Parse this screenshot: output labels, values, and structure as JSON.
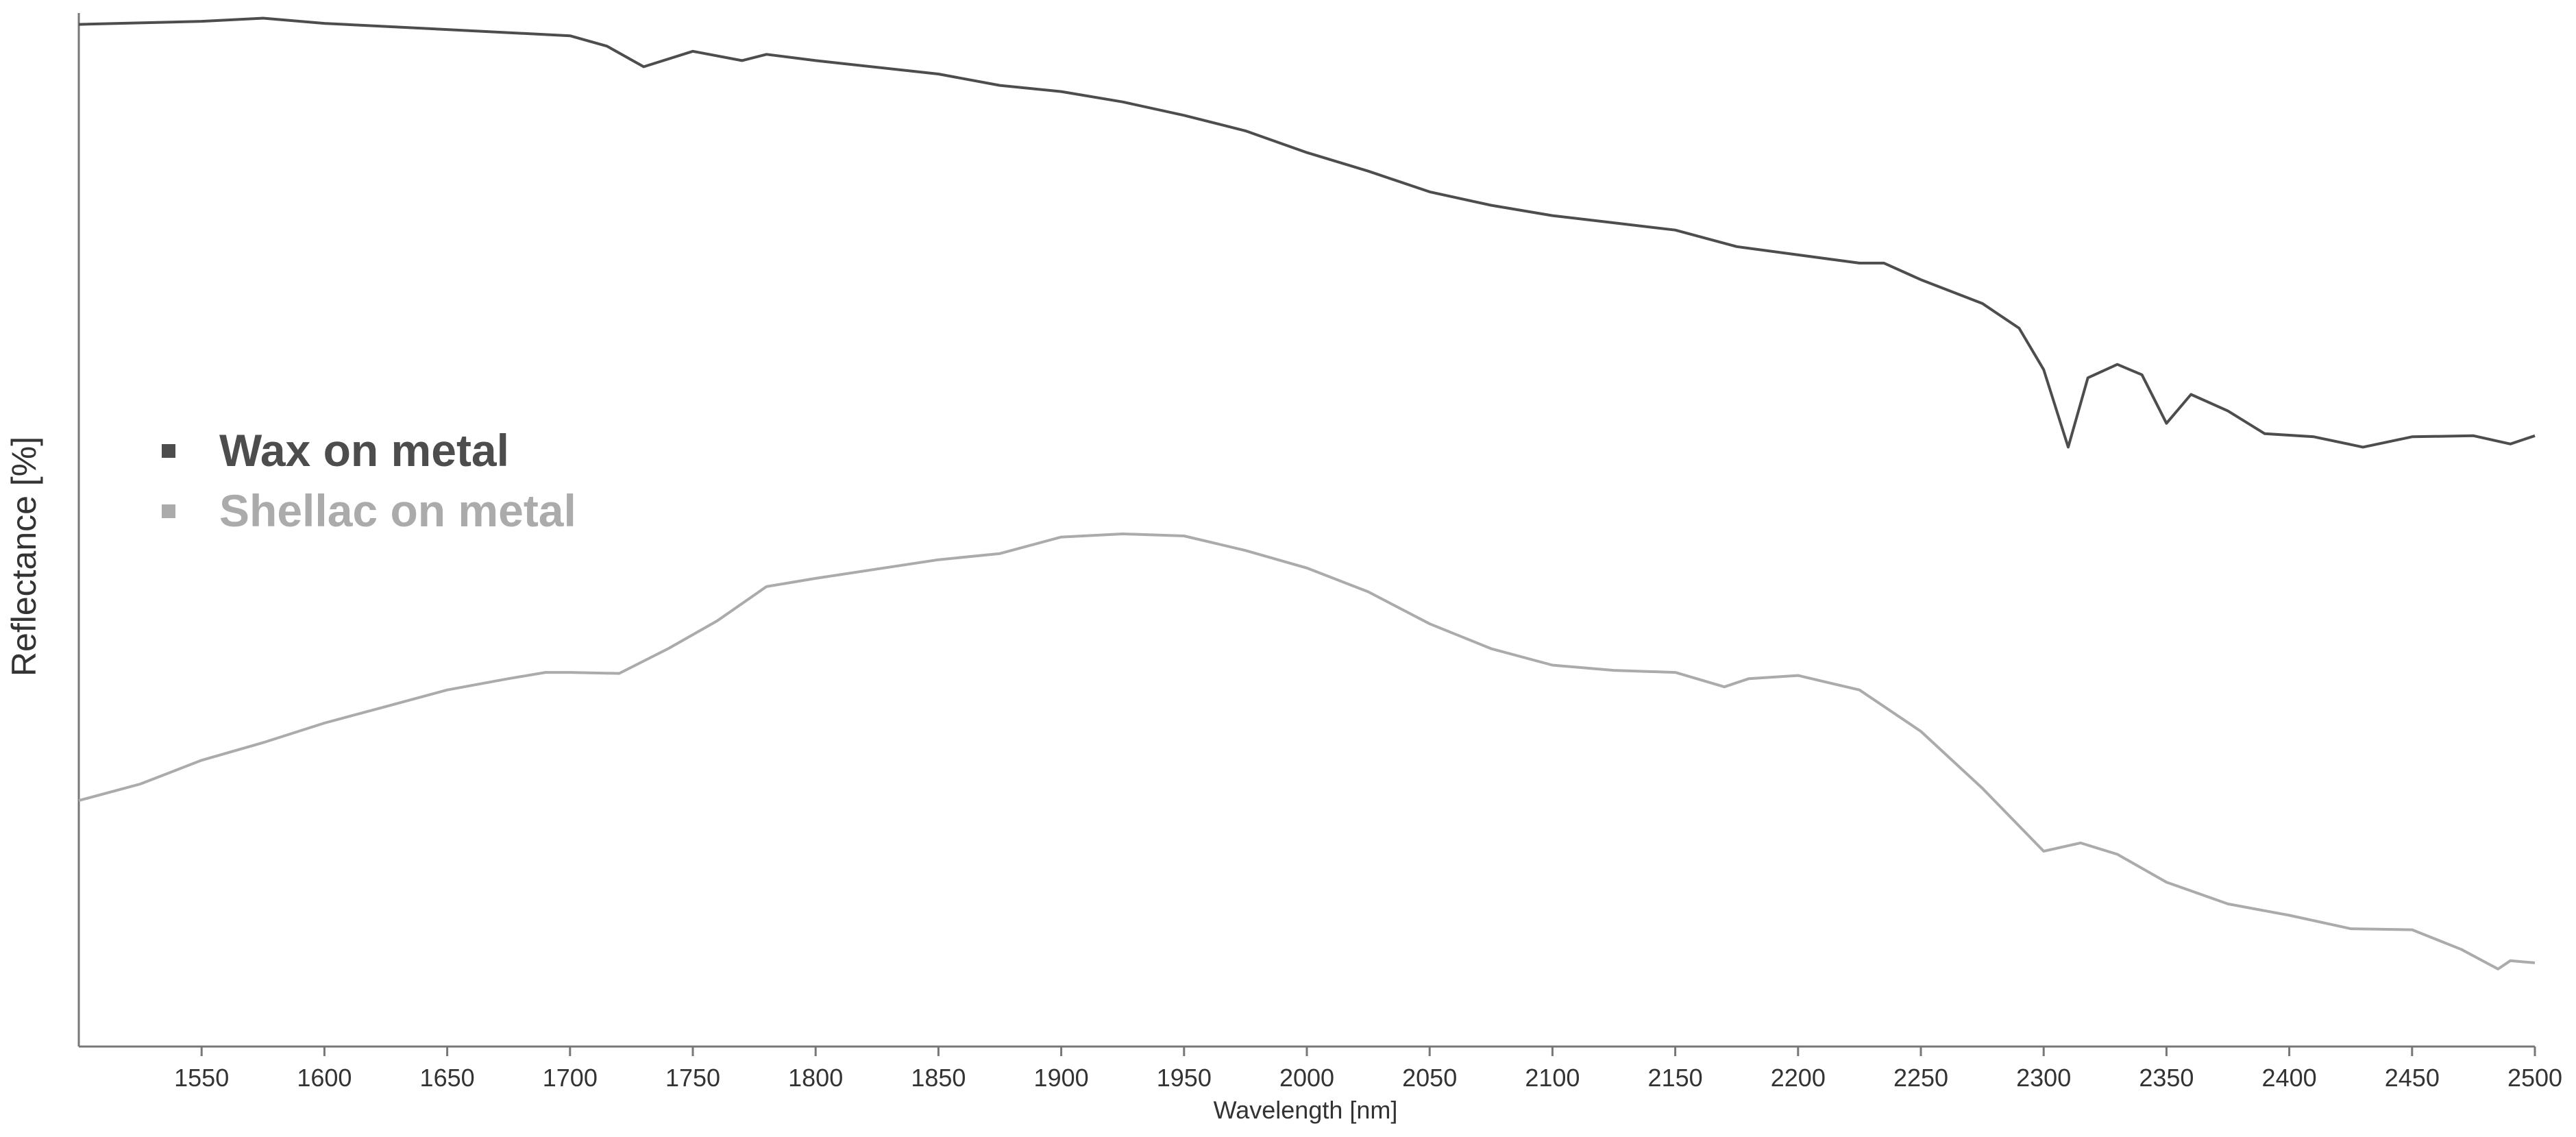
{
  "chart_data": {
    "type": "line",
    "x_label": "Wavelength [nm]",
    "y_label": "Reflectance [%]",
    "xlim": [
      1500,
      2500
    ],
    "ylim": [
      0,
      100
    ],
    "xticks": [
      1550,
      1600,
      1650,
      1700,
      1750,
      1800,
      1850,
      1900,
      1950,
      2000,
      2050,
      2100,
      2150,
      2200,
      2250,
      2300,
      2350,
      2400,
      2450,
      2500
    ],
    "series": [
      {
        "name": "Wax on metal",
        "color": "#4d4d4d",
        "x": [
          1500,
          1550,
          1575,
          1600,
          1650,
          1700,
          1715,
          1730,
          1750,
          1770,
          1780,
          1800,
          1850,
          1875,
          1900,
          1925,
          1950,
          1975,
          2000,
          2025,
          2050,
          2075,
          2100,
          2125,
          2150,
          2175,
          2200,
          2225,
          2235,
          2250,
          2275,
          2290,
          2300,
          2310,
          2318,
          2330,
          2340,
          2350,
          2360,
          2375,
          2390,
          2410,
          2430,
          2450,
          2475,
          2490,
          2500
        ],
        "values": [
          98.9,
          99.2,
          99.5,
          99.0,
          98.4,
          97.8,
          96.8,
          94.8,
          96.3,
          95.4,
          96.0,
          95.4,
          94.1,
          93.0,
          92.4,
          91.4,
          90.1,
          88.6,
          86.5,
          84.7,
          82.7,
          81.4,
          80.4,
          79.7,
          79.0,
          77.4,
          76.6,
          75.8,
          75.8,
          74.2,
          71.9,
          69.5,
          65.5,
          58.0,
          64.7,
          66.0,
          65.0,
          60.3,
          63.1,
          61.5,
          59.3,
          59.0,
          58.0,
          59.0,
          59.1,
          58.3,
          59.1
        ]
      },
      {
        "name": "Shellac on metal",
        "color": "#ababab",
        "x": [
          1500,
          1525,
          1550,
          1575,
          1600,
          1625,
          1650,
          1675,
          1690,
          1700,
          1720,
          1740,
          1760,
          1780,
          1800,
          1850,
          1875,
          1900,
          1925,
          1950,
          1975,
          2000,
          2025,
          2050,
          2075,
          2100,
          2125,
          2150,
          2170,
          2180,
          2200,
          2225,
          2250,
          2275,
          2300,
          2315,
          2330,
          2350,
          2375,
          2400,
          2425,
          2450,
          2470,
          2485,
          2490,
          2500
        ],
        "values": [
          23.8,
          25.4,
          27.7,
          29.4,
          31.3,
          32.9,
          34.5,
          35.6,
          36.2,
          36.2,
          36.1,
          38.5,
          41.2,
          44.5,
          45.3,
          47.1,
          47.7,
          49.3,
          49.6,
          49.4,
          48.0,
          46.3,
          44.0,
          40.9,
          38.5,
          36.9,
          36.4,
          36.2,
          34.8,
          35.6,
          35.9,
          34.5,
          30.5,
          25.0,
          18.9,
          19.7,
          18.6,
          15.9,
          13.8,
          12.7,
          11.4,
          11.3,
          9.4,
          7.5,
          8.3,
          8.1
        ]
      }
    ]
  }
}
